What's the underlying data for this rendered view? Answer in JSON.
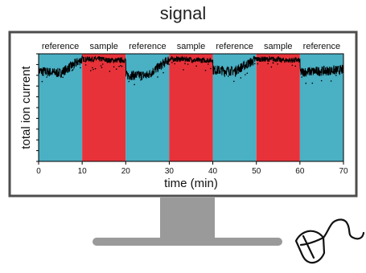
{
  "title": "signal",
  "colors": {
    "reference": "#4ab0c4",
    "sample": "#e8323a",
    "trace": "#000000",
    "monitor_stand": "#9a9a9a"
  },
  "icons": [
    "monitor-icon",
    "mouse-icon"
  ],
  "chart_data": {
    "type": "line",
    "xlabel": "time (min)",
    "ylabel": "total ion current",
    "xlim": [
      0,
      70
    ],
    "xticks": [
      0,
      10,
      20,
      30,
      40,
      50,
      60,
      70
    ],
    "y_ticks_unlabeled": true,
    "regions": [
      {
        "label": "reference",
        "start": 0,
        "end": 10,
        "kind": "reference"
      },
      {
        "label": "sample",
        "start": 10,
        "end": 20,
        "kind": "sample"
      },
      {
        "label": "reference",
        "start": 20,
        "end": 30,
        "kind": "reference"
      },
      {
        "label": "sample",
        "start": 30,
        "end": 40,
        "kind": "sample"
      },
      {
        "label": "reference",
        "start": 40,
        "end": 50,
        "kind": "reference"
      },
      {
        "label": "sample",
        "start": 50,
        "end": 60,
        "kind": "sample"
      },
      {
        "label": "reference",
        "start": 60,
        "end": 70,
        "kind": "reference"
      }
    ],
    "series": [
      {
        "x": [
          0,
          5,
          10,
          15,
          20,
          25,
          30,
          35,
          40,
          45,
          50,
          55,
          60,
          65,
          70
        ],
        "values": [
          0.84,
          0.82,
          0.95,
          0.95,
          0.8,
          0.8,
          0.95,
          0.95,
          0.85,
          0.84,
          0.95,
          0.95,
          0.83,
          0.84,
          0.85
        ]
      }
    ]
  }
}
